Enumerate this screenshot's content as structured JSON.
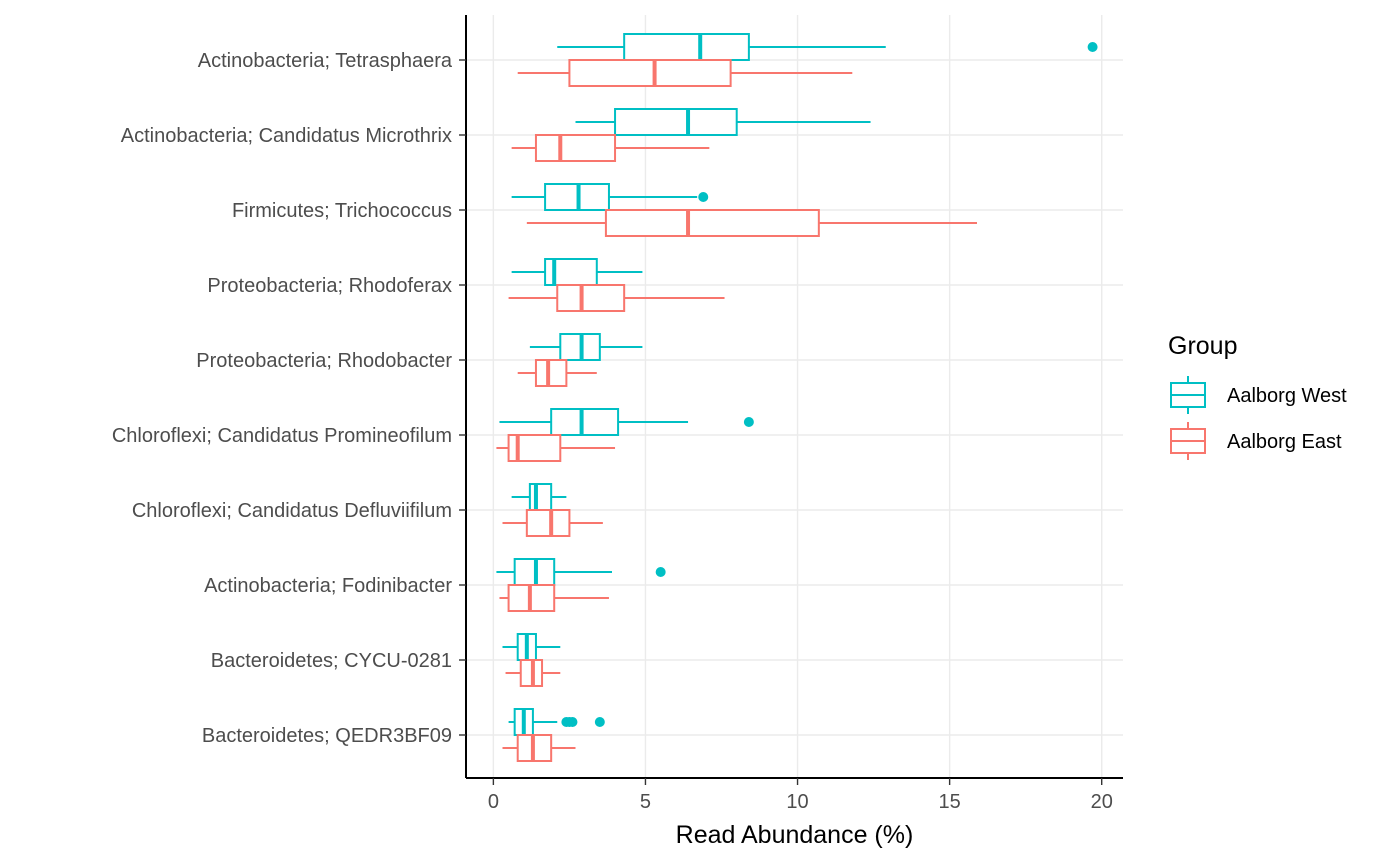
{
  "chart_data": {
    "type": "boxplot",
    "orientation": "horizontal",
    "xlabel": "Read Abundance (%)",
    "xlim": [
      -0.9,
      20.7
    ],
    "x_ticks": [
      0,
      5,
      10,
      15,
      20
    ],
    "grid": true,
    "legend": {
      "title": "Group",
      "placement": "right"
    },
    "series": [
      {
        "name": "Aalborg West",
        "color": "#00BFC4"
      },
      {
        "name": "Aalborg East",
        "color": "#F8766D"
      }
    ],
    "categories": [
      {
        "label": "Actinobacteria; Tetrasphaera",
        "boxes": [
          {
            "min": 2.1,
            "q1": 4.3,
            "median": 6.8,
            "q3": 8.4,
            "max": 12.9,
            "outliers": [
              19.7
            ]
          },
          {
            "min": 0.8,
            "q1": 2.5,
            "median": 5.3,
            "q3": 7.8,
            "max": 11.8,
            "outliers": []
          }
        ]
      },
      {
        "label": "Actinobacteria; Candidatus Microthrix",
        "boxes": [
          {
            "min": 2.7,
            "q1": 4.0,
            "median": 6.4,
            "q3": 8.0,
            "max": 12.4,
            "outliers": []
          },
          {
            "min": 0.6,
            "q1": 1.4,
            "median": 2.2,
            "q3": 4.0,
            "max": 7.1,
            "outliers": []
          }
        ]
      },
      {
        "label": "Firmicutes; Trichococcus",
        "boxes": [
          {
            "min": 0.6,
            "q1": 1.7,
            "median": 2.8,
            "q3": 3.8,
            "max": 6.7,
            "outliers": [
              6.9
            ]
          },
          {
            "min": 1.1,
            "q1": 3.7,
            "median": 6.4,
            "q3": 10.7,
            "max": 15.9,
            "outliers": []
          }
        ]
      },
      {
        "label": "Proteobacteria; Rhodoferax",
        "boxes": [
          {
            "min": 0.6,
            "q1": 1.7,
            "median": 2.0,
            "q3": 3.4,
            "max": 4.9,
            "outliers": []
          },
          {
            "min": 0.5,
            "q1": 2.1,
            "median": 2.9,
            "q3": 4.3,
            "max": 7.6,
            "outliers": []
          }
        ]
      },
      {
        "label": "Proteobacteria; Rhodobacter",
        "boxes": [
          {
            "min": 1.2,
            "q1": 2.2,
            "median": 2.9,
            "q3": 3.5,
            "max": 4.9,
            "outliers": []
          },
          {
            "min": 0.8,
            "q1": 1.4,
            "median": 1.8,
            "q3": 2.4,
            "max": 3.4,
            "outliers": []
          }
        ]
      },
      {
        "label": "Chloroflexi; Candidatus Promineofilum",
        "boxes": [
          {
            "min": 0.2,
            "q1": 1.9,
            "median": 2.9,
            "q3": 4.1,
            "max": 6.4,
            "outliers": [
              8.4
            ]
          },
          {
            "min": 0.1,
            "q1": 0.5,
            "median": 0.8,
            "q3": 2.2,
            "max": 4.0,
            "outliers": []
          }
        ]
      },
      {
        "label": "Chloroflexi; Candidatus Defluviifilum",
        "boxes": [
          {
            "min": 0.6,
            "q1": 1.2,
            "median": 1.4,
            "q3": 1.9,
            "max": 2.4,
            "outliers": []
          },
          {
            "min": 0.3,
            "q1": 1.1,
            "median": 1.9,
            "q3": 2.5,
            "max": 3.6,
            "outliers": []
          }
        ]
      },
      {
        "label": "Actinobacteria; Fodinibacter",
        "boxes": [
          {
            "min": 0.1,
            "q1": 0.7,
            "median": 1.4,
            "q3": 2.0,
            "max": 3.9,
            "outliers": [
              5.5
            ]
          },
          {
            "min": 0.2,
            "q1": 0.5,
            "median": 1.2,
            "q3": 2.0,
            "max": 3.8,
            "outliers": []
          }
        ]
      },
      {
        "label": "Bacteroidetes; CYCU-0281",
        "boxes": [
          {
            "min": 0.3,
            "q1": 0.8,
            "median": 1.1,
            "q3": 1.4,
            "max": 2.2,
            "outliers": []
          },
          {
            "min": 0.4,
            "q1": 0.9,
            "median": 1.3,
            "q3": 1.6,
            "max": 2.2,
            "outliers": []
          }
        ]
      },
      {
        "label": "Bacteroidetes; QEDR3BF09",
        "boxes": [
          {
            "min": 0.5,
            "q1": 0.7,
            "median": 1.0,
            "q3": 1.3,
            "max": 2.1,
            "outliers": [
              2.4,
              2.5,
              2.6,
              3.5
            ]
          },
          {
            "min": 0.3,
            "q1": 0.8,
            "median": 1.3,
            "q3": 1.9,
            "max": 2.7,
            "outliers": []
          }
        ]
      }
    ]
  }
}
